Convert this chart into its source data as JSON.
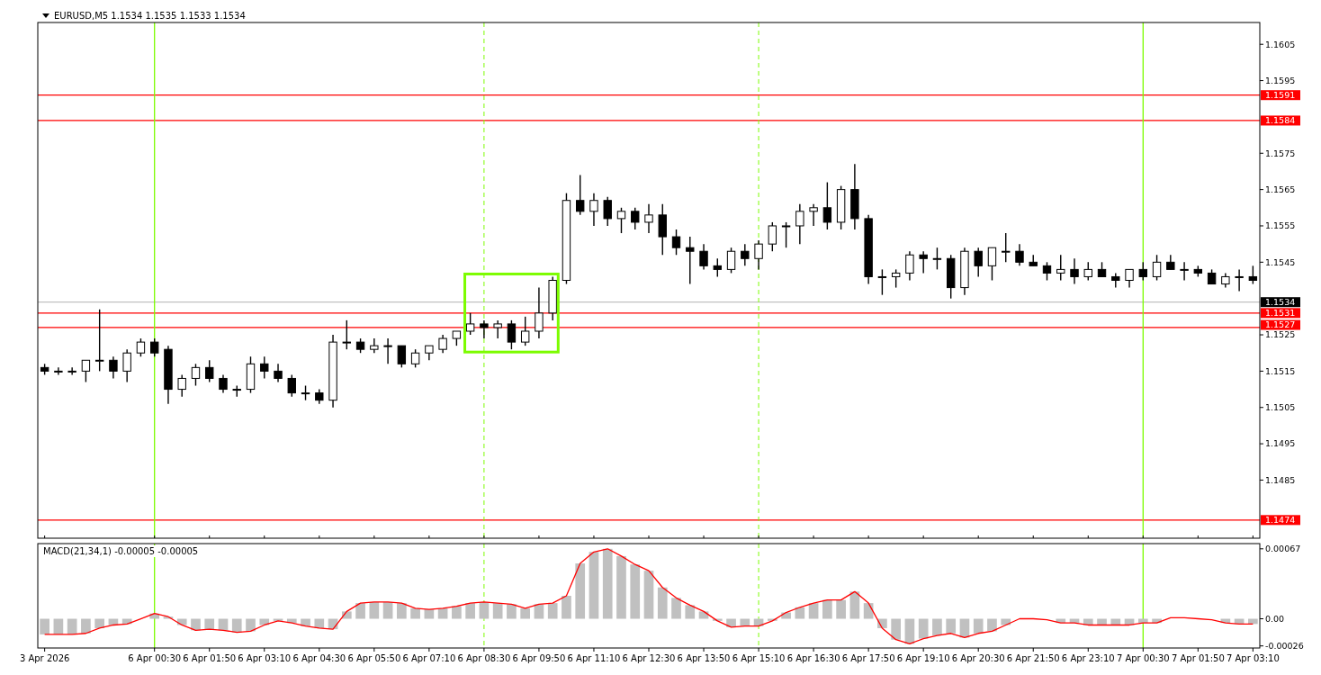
{
  "chart_data": [
    {
      "type": "candlestick",
      "title": "EURUSD,M5  1.1534 1.1535 1.1533 1.1534",
      "color": "#000000",
      "categories": [
        "3 Apr 2026",
        null,
        null,
        null,
        null,
        null,
        null,
        null,
        "6 Apr 00:30",
        null,
        null,
        null,
        "6 Apr 01:50",
        null,
        null,
        null,
        "6 Apr 03:10",
        null,
        null,
        null,
        "6 Apr 04:30",
        null,
        null,
        null,
        "6 Apr 05:50",
        null,
        null,
        null,
        "6 Apr 07:10",
        null,
        null,
        null,
        "6 Apr 08:30",
        null,
        null,
        null,
        "6 Apr 09:50",
        null,
        null,
        null,
        "6 Apr 11:10",
        null,
        null,
        null,
        "6 Apr 12:30",
        null,
        null,
        null,
        "6 Apr 13:50",
        null,
        null,
        null,
        "6 Apr 15:10",
        null,
        null,
        null,
        "6 Apr 16:30",
        null,
        null,
        null,
        "6 Apr 17:50",
        null,
        null,
        null,
        "6 Apr 19:10",
        null,
        null,
        null,
        "6 Apr 20:30",
        null,
        null,
        null,
        "6 Apr 21:50",
        null,
        null,
        null,
        "6 Apr 23:10",
        null,
        null,
        null,
        "7 Apr 00:30",
        null,
        null,
        null,
        "7 Apr 01:50",
        null,
        null,
        null,
        "7 Apr 03:10"
      ],
      "ohlc": [
        [
          1.1516,
          1.1517,
          1.1514,
          1.1515
        ],
        [
          1.1515,
          1.1516,
          1.1514,
          1.1515
        ],
        [
          1.1515,
          1.1516,
          1.1514,
          1.1515
        ],
        [
          1.1515,
          1.1518,
          1.1512,
          1.1518
        ],
        [
          1.1518,
          1.1532,
          1.1515,
          1.1518
        ],
        [
          1.1518,
          1.1519,
          1.1513,
          1.1515
        ],
        [
          1.1515,
          1.1521,
          1.1512,
          1.152
        ],
        [
          1.152,
          1.1524,
          1.1519,
          1.1523
        ],
        [
          1.1523,
          1.1524,
          1.1519,
          1.152
        ],
        [
          1.1521,
          1.1522,
          1.1506,
          1.151
        ],
        [
          1.151,
          1.1514,
          1.1508,
          1.1513
        ],
        [
          1.1513,
          1.1517,
          1.1511,
          1.1516
        ],
        [
          1.1516,
          1.1518,
          1.1512,
          1.1513
        ],
        [
          1.1513,
          1.1514,
          1.1509,
          1.151
        ],
        [
          1.151,
          1.1511,
          1.1508,
          1.151
        ],
        [
          1.151,
          1.1519,
          1.1509,
          1.1517
        ],
        [
          1.1517,
          1.1519,
          1.1513,
          1.1515
        ],
        [
          1.1515,
          1.1517,
          1.1512,
          1.1513
        ],
        [
          1.1513,
          1.1514,
          1.1508,
          1.1509
        ],
        [
          1.1509,
          1.1511,
          1.1507,
          1.1509
        ],
        [
          1.1509,
          1.151,
          1.1506,
          1.1507
        ],
        [
          1.1507,
          1.1525,
          1.1505,
          1.1523
        ],
        [
          1.1523,
          1.1529,
          1.1521,
          1.1523
        ],
        [
          1.1523,
          1.1524,
          1.152,
          1.1521
        ],
        [
          1.1521,
          1.1524,
          1.152,
          1.1522
        ],
        [
          1.1522,
          1.1524,
          1.1517,
          1.1522
        ],
        [
          1.1522,
          1.1522,
          1.1516,
          1.1517
        ],
        [
          1.1517,
          1.1521,
          1.1516,
          1.152
        ],
        [
          1.152,
          1.1522,
          1.1518,
          1.1522
        ],
        [
          1.1521,
          1.1525,
          1.152,
          1.1524
        ],
        [
          1.1524,
          1.1526,
          1.1522,
          1.1526
        ],
        [
          1.1526,
          1.1531,
          1.1525,
          1.1528
        ],
        [
          1.1528,
          1.1529,
          1.1524,
          1.1527
        ],
        [
          1.1527,
          1.1529,
          1.1524,
          1.1528
        ],
        [
          1.1528,
          1.1529,
          1.1521,
          1.1523
        ],
        [
          1.1523,
          1.153,
          1.1522,
          1.1526
        ],
        [
          1.1526,
          1.1538,
          1.1524,
          1.1531
        ],
        [
          1.1531,
          1.1541,
          1.1529,
          1.154
        ],
        [
          1.154,
          1.1564,
          1.1539,
          1.1562
        ],
        [
          1.1562,
          1.1569,
          1.1558,
          1.1559
        ],
        [
          1.1559,
          1.1564,
          1.1555,
          1.1562
        ],
        [
          1.1562,
          1.1563,
          1.1555,
          1.1557
        ],
        [
          1.1557,
          1.156,
          1.1553,
          1.1559
        ],
        [
          1.1559,
          1.156,
          1.1554,
          1.1556
        ],
        [
          1.1556,
          1.1561,
          1.1553,
          1.1558
        ],
        [
          1.1558,
          1.1561,
          1.1547,
          1.1552
        ],
        [
          1.1552,
          1.1554,
          1.1547,
          1.1549
        ],
        [
          1.1549,
          1.1552,
          1.1539,
          1.1548
        ],
        [
          1.1548,
          1.155,
          1.1543,
          1.1544
        ],
        [
          1.1544,
          1.1546,
          1.1541,
          1.1543
        ],
        [
          1.1543,
          1.1549,
          1.1542,
          1.1548
        ],
        [
          1.1548,
          1.155,
          1.1544,
          1.1546
        ],
        [
          1.1546,
          1.1551,
          1.1543,
          1.155
        ],
        [
          1.155,
          1.1556,
          1.1548,
          1.1555
        ],
        [
          1.1555,
          1.1556,
          1.1549,
          1.1555
        ],
        [
          1.1555,
          1.1561,
          1.155,
          1.1559
        ],
        [
          1.1559,
          1.1561,
          1.1555,
          1.156
        ],
        [
          1.156,
          1.1567,
          1.1554,
          1.1556
        ],
        [
          1.1556,
          1.1566,
          1.1554,
          1.1565
        ],
        [
          1.1565,
          1.1572,
          1.1554,
          1.1557
        ],
        [
          1.1557,
          1.1558,
          1.1539,
          1.1541
        ],
        [
          1.1541,
          1.1543,
          1.1536,
          1.1541
        ],
        [
          1.1541,
          1.1543,
          1.1538,
          1.1542
        ],
        [
          1.1542,
          1.1548,
          1.154,
          1.1547
        ],
        [
          1.1547,
          1.1548,
          1.1542,
          1.1546
        ],
        [
          1.1546,
          1.1549,
          1.1543,
          1.1546
        ],
        [
          1.1546,
          1.1547,
          1.1535,
          1.1538
        ],
        [
          1.1538,
          1.1549,
          1.1536,
          1.1548
        ],
        [
          1.1548,
          1.1549,
          1.1541,
          1.1544
        ],
        [
          1.1544,
          1.1549,
          1.154,
          1.1549
        ],
        [
          1.1548,
          1.1553,
          1.1545,
          1.1548
        ],
        [
          1.1548,
          1.155,
          1.1544,
          1.1545
        ],
        [
          1.1545,
          1.1547,
          1.1544,
          1.1544
        ],
        [
          1.1544,
          1.1545,
          1.154,
          1.1542
        ],
        [
          1.1542,
          1.1547,
          1.154,
          1.1543
        ],
        [
          1.1543,
          1.1546,
          1.1539,
          1.1541
        ],
        [
          1.1541,
          1.1545,
          1.154,
          1.1543
        ],
        [
          1.1543,
          1.1545,
          1.1541,
          1.1541
        ],
        [
          1.1541,
          1.1542,
          1.1538,
          1.154
        ],
        [
          1.154,
          1.1543,
          1.1538,
          1.1543
        ],
        [
          1.1543,
          1.1545,
          1.154,
          1.1541
        ],
        [
          1.1541,
          1.1547,
          1.154,
          1.1545
        ],
        [
          1.1545,
          1.1547,
          1.1543,
          1.1543
        ],
        [
          1.1543,
          1.1545,
          1.154,
          1.1543
        ],
        [
          1.1543,
          1.1544,
          1.1541,
          1.1542
        ],
        [
          1.1542,
          1.1543,
          1.1539,
          1.1539
        ],
        [
          1.1539,
          1.1542,
          1.1538,
          1.1541
        ],
        [
          1.1541,
          1.1543,
          1.1537,
          1.1541
        ],
        [
          1.1541,
          1.1544,
          1.1539,
          1.154
        ]
      ],
      "ylim": [
        1.1469,
        1.1611
      ],
      "yticks": [
        1.1605,
        1.1595,
        1.1575,
        1.1565,
        1.1555,
        1.1545,
        1.1525,
        1.1515,
        1.1505,
        1.1495,
        1.1485
      ],
      "tick_labels": "y",
      "grid": false,
      "ref_lines": [
        {
          "axis": "y",
          "value": 1.1591,
          "label": "1.1591",
          "color": "#ff0000"
        },
        {
          "axis": "y",
          "value": 1.1584,
          "label": "1.1584",
          "color": "#ff0000"
        },
        {
          "axis": "y",
          "value": 1.1534,
          "label": "1.1534",
          "color": "#c0c0c0"
        },
        {
          "axis": "y",
          "value": 1.1531,
          "label": "1.1531",
          "color": "#ff0000"
        },
        {
          "axis": "y",
          "value": 1.1527,
          "label": "1.1527",
          "color": "#ff0000"
        },
        {
          "axis": "y",
          "value": 1.1474,
          "label": "1.1474",
          "color": "#ff0000"
        },
        {
          "axis": "x",
          "value": "6 Apr 00:30",
          "color": "#7cfc00",
          "line_style": "solid"
        },
        {
          "axis": "x",
          "value": "7 Apr 00:30",
          "color": "#7cfc00",
          "line_style": "solid"
        },
        {
          "axis": "x",
          "value": "6 Apr 08:30",
          "color": "#7cfc00",
          "line_style": "dashed"
        },
        {
          "axis": "x",
          "value": "6 Apr 15:10",
          "color": "#7cfc00",
          "line_style": "dashed"
        }
      ]
    },
    {
      "type": "bar",
      "title": "MACD(21,34,1) -0.00005 -0.00005",
      "categories": [
        "3 Apr 2026",
        null,
        null,
        null,
        null,
        null,
        null,
        null,
        "6 Apr 00:30",
        null,
        null,
        null,
        "6 Apr 01:50",
        null,
        null,
        null,
        "6 Apr 03:10",
        null,
        null,
        null,
        "6 Apr 04:30",
        null,
        null,
        null,
        "6 Apr 05:50",
        null,
        null,
        null,
        "6 Apr 07:10",
        null,
        null,
        null,
        "6 Apr 08:30",
        null,
        null,
        null,
        "6 Apr 09:50",
        null,
        null,
        null,
        "6 Apr 11:10",
        null,
        null,
        null,
        "6 Apr 12:30",
        null,
        null,
        null,
        "6 Apr 13:50",
        null,
        null,
        null,
        "6 Apr 15:10",
        null,
        null,
        null,
        "6 Apr 16:30",
        null,
        null,
        null,
        "6 Apr 17:50",
        null,
        null,
        null,
        "6 Apr 19:10",
        null,
        null,
        null,
        "6 Apr 20:30",
        null,
        null,
        null,
        "6 Apr 21:50",
        null,
        null,
        null,
        "6 Apr 23:10",
        null,
        null,
        null,
        "7 Apr 00:30",
        null,
        null,
        null,
        "7 Apr 01:50",
        null,
        null,
        null,
        "7 Apr 03:10"
      ],
      "series": [
        {
          "type": "bar",
          "color": "#c0c0c0",
          "values": [
            -0.00015,
            -0.00015,
            -0.00015,
            -0.00014,
            -9e-05,
            -6e-05,
            -5e-05,
            0,
            5e-05,
            2e-05,
            -6e-05,
            -0.00011,
            -0.0001,
            -0.00011,
            -0.00013,
            -0.00012,
            -6e-05,
            -2e-05,
            -4e-05,
            -7e-05,
            -9e-05,
            -0.0001,
            7e-05,
            0.00015,
            0.00016,
            0.00016,
            0.00015,
            0.0001,
            9e-05,
            0.0001,
            0.00012,
            0.00015,
            0.00016,
            0.00015,
            0.00014,
            0.0001,
            0.00014,
            0.00015,
            0.00022,
            0.00053,
            0.00064,
            0.00067,
            0.0006,
            0.00052,
            0.00046,
            0.0003,
            0.0002,
            0.00013,
            7e-05,
            -2e-05,
            -8e-05,
            -7e-05,
            -7e-05,
            -2e-05,
            6e-05,
            0.00011,
            0.00015,
            0.00018,
            0.00018,
            0.00026,
            0.00015,
            -9e-05,
            -0.0002,
            -0.00024,
            -0.00019,
            -0.00016,
            -0.00014,
            -0.00018,
            -0.00014,
            -0.00012,
            -6e-05,
            0,
            0,
            null,
            -4e-05,
            -4e-05,
            -6e-05,
            -6e-05,
            -6e-05,
            -6e-05,
            -4e-05,
            -4e-05,
            null,
            null,
            0,
            null,
            -4e-05,
            -5e-05,
            -5e-05
          ]
        },
        {
          "type": "line",
          "color": "#ff0000",
          "values": [
            -0.00015,
            -0.00015,
            -0.00015,
            -0.00014,
            -9e-05,
            -6e-05,
            -5e-05,
            0,
            5e-05,
            2e-05,
            -6e-05,
            -0.00011,
            -0.0001,
            -0.00011,
            -0.00013,
            -0.00012,
            -6e-05,
            -2e-05,
            -4e-05,
            -7e-05,
            -9e-05,
            -0.0001,
            7e-05,
            0.00015,
            0.00016,
            0.00016,
            0.00015,
            0.0001,
            9e-05,
            0.0001,
            0.00012,
            0.00015,
            0.00016,
            0.00015,
            0.00014,
            0.0001,
            0.00014,
            0.00015,
            0.00022,
            0.00053,
            0.00064,
            0.00067,
            0.0006,
            0.00052,
            0.00046,
            0.0003,
            0.0002,
            0.00013,
            7e-05,
            -2e-05,
            -8e-05,
            -7e-05,
            -7e-05,
            -2e-05,
            6e-05,
            0.00011,
            0.00015,
            0.00018,
            0.00018,
            0.00026,
            0.00015,
            -9e-05,
            -0.0002,
            -0.00024,
            -0.00019,
            -0.00016,
            -0.00014,
            -0.00018,
            -0.00014,
            -0.00012,
            -6e-05,
            0,
            0,
            -1e-05,
            -4e-05,
            -4e-05,
            -6e-05,
            -6e-05,
            -6e-05,
            -6e-05,
            -4e-05,
            -4e-05,
            1e-05,
            1e-05,
            0,
            -1e-05,
            -4e-05,
            -5e-05,
            -5e-05
          ]
        }
      ],
      "ylim": [
        -0.00028,
        0.00072
      ],
      "yticks": [
        0.00067,
        {
          "value": 0,
          "label": "0.00"
        },
        -0.00026
      ],
      "grid": false,
      "ref_lines": [
        {
          "axis": "x",
          "value": "6 Apr 00:30",
          "color": "#7cfc00",
          "line_style": "solid"
        },
        {
          "axis": "x",
          "value": "7 Apr 00:30",
          "color": "#7cfc00",
          "line_style": "solid"
        },
        {
          "axis": "x",
          "value": "6 Apr 08:30",
          "color": "#7cfc00",
          "line_style": "dashed"
        },
        {
          "axis": "x",
          "value": "6 Apr 15:10",
          "color": "#7cfc00",
          "line_style": "dashed"
        }
      ]
    }
  ]
}
